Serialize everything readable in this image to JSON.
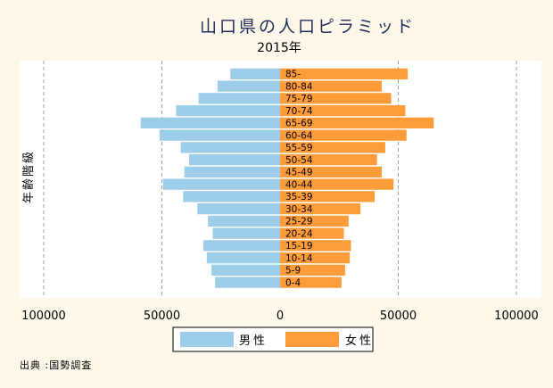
{
  "chart_data": {
    "type": "bar",
    "orientation": "horizontal-population-pyramid",
    "title": "山口県の人口ピラミッド",
    "subtitle": "2015年",
    "ylabel": "年齢階級",
    "xlim": [
      -100000,
      100000
    ],
    "x_ticks": [
      -100000,
      -50000,
      0,
      50000,
      100000
    ],
    "x_tick_labels": [
      "100000",
      "50000",
      "0",
      "50000",
      "100000"
    ],
    "grid": true,
    "legend_position": "bottom",
    "categories": [
      "0-4",
      "5-9",
      "10-14",
      "15-19",
      "20-24",
      "25-29",
      "30-34",
      "35-39",
      "40-44",
      "45-49",
      "50-54",
      "55-59",
      "60-64",
      "65-69",
      "70-74",
      "75-79",
      "80-84",
      "85-"
    ],
    "series": [
      {
        "name": "男性",
        "color": "#9ecde9",
        "side": "left",
        "values": [
          27500,
          29000,
          31000,
          32500,
          28500,
          30500,
          35000,
          41000,
          49500,
          40500,
          38500,
          42000,
          51000,
          59000,
          44000,
          34500,
          26500,
          21000
        ]
      },
      {
        "name": "女性",
        "color": "#ff9c3a",
        "side": "right",
        "values": [
          26000,
          27500,
          29500,
          30000,
          27000,
          29000,
          34000,
          40000,
          48000,
          43000,
          41000,
          44500,
          53500,
          65000,
          53000,
          47000,
          43000,
          54000
        ]
      }
    ],
    "source": "出典 :国勢調査"
  },
  "colors": {
    "background": "#fdf8ea",
    "plot_background": "#ffffff",
    "title": "#1f2d5a",
    "grid": "#9aa0aa"
  }
}
